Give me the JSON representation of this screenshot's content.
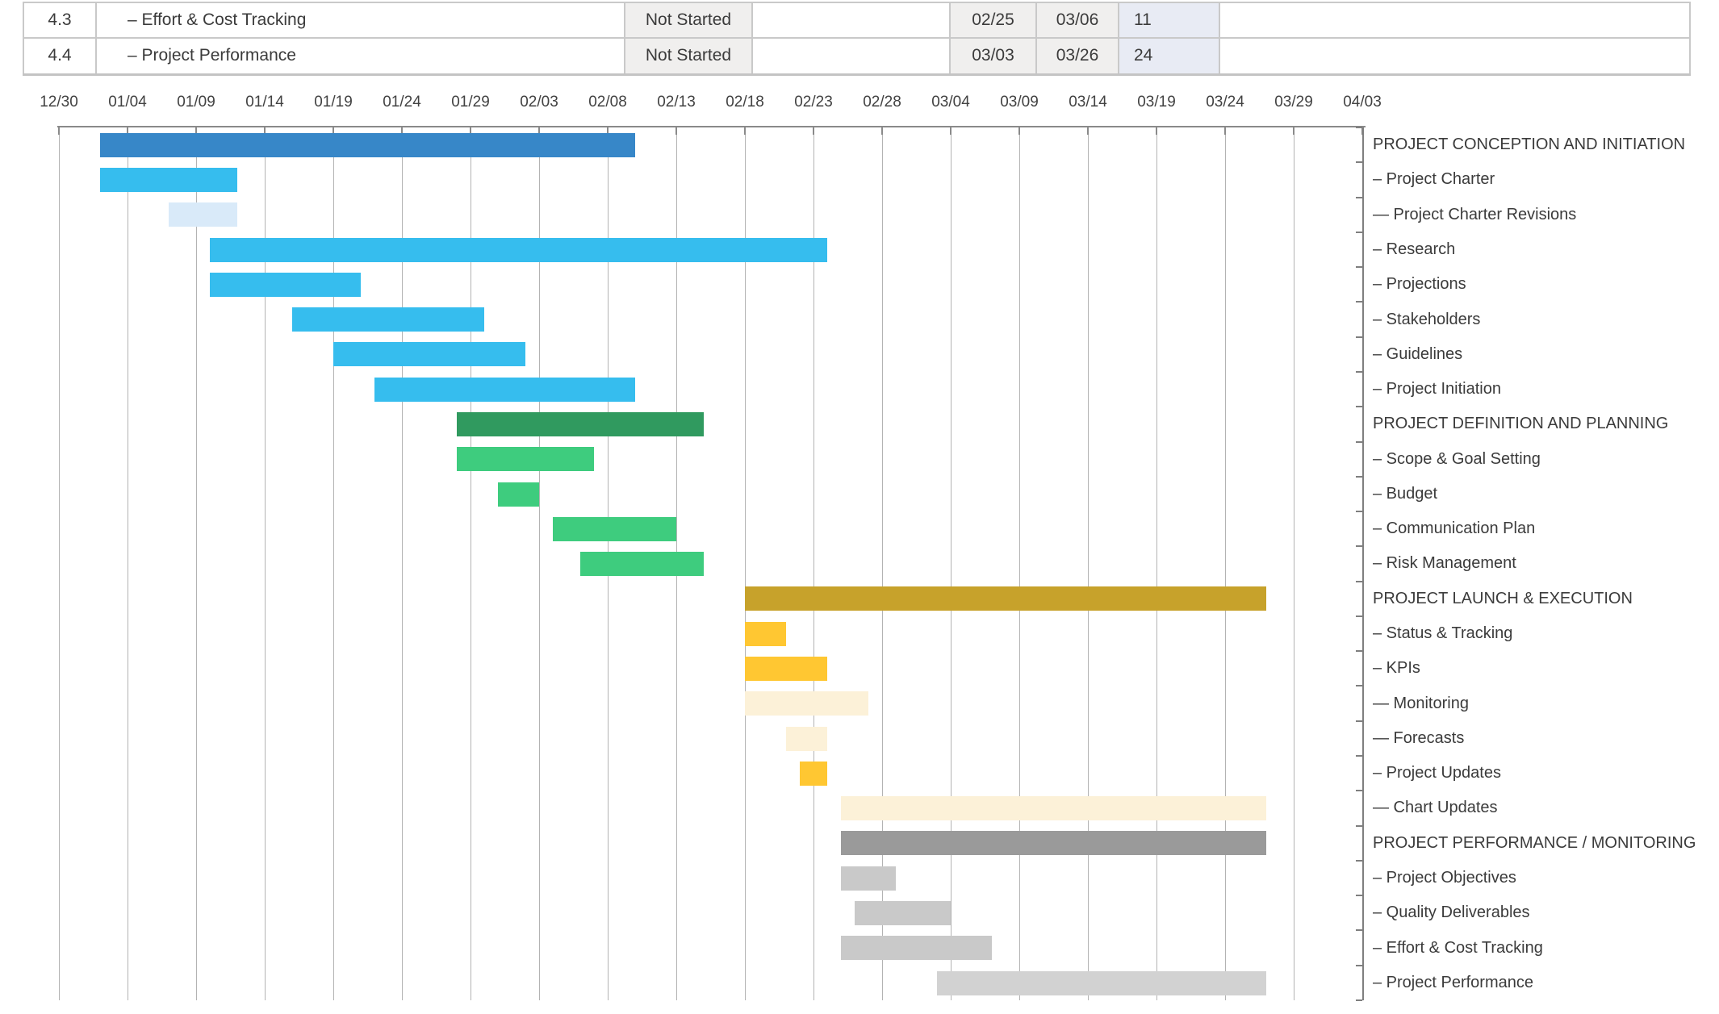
{
  "table": {
    "rows": [
      {
        "wbs": "4.3",
        "task": "– Effort & Cost Tracking",
        "status": "Not Started",
        "assigned": "",
        "start": "02/25",
        "end": "03/06",
        "duration": "11",
        "notes": ""
      },
      {
        "wbs": "4.4",
        "task": "– Project Performance",
        "status": "Not Started",
        "assigned": "",
        "start": "03/03",
        "end": "03/26",
        "duration": "24",
        "notes": ""
      }
    ]
  },
  "chart_data": {
    "type": "gantt",
    "title": "",
    "axis": {
      "tick_labels": [
        "12/30",
        "01/04",
        "01/09",
        "01/14",
        "01/19",
        "01/24",
        "01/29",
        "02/03",
        "02/08",
        "02/13",
        "02/18",
        "02/23",
        "02/28",
        "03/04",
        "03/09",
        "03/14",
        "03/19",
        "03/24",
        "03/29",
        "04/03"
      ],
      "range_start": "12/30",
      "range_end": "04/03",
      "grid": "on",
      "labels_position": "right"
    },
    "rows": [
      {
        "label": "PROJECT CONCEPTION AND INITIATION",
        "level": "section",
        "start": "01/02",
        "end": "02/09",
        "color": "#3787c8",
        "color_name": "dark-blue"
      },
      {
        "label": "– Project Charter",
        "level": "task",
        "start": "01/02",
        "end": "01/11",
        "color": "#36bdee",
        "color_name": "sky-blue"
      },
      {
        "label": "— Project Charter Revisions",
        "level": "subtask",
        "start": "01/07",
        "end": "01/11",
        "color": "#d9eaf9",
        "color_name": "pale-blue"
      },
      {
        "label": "– Research",
        "level": "task",
        "start": "01/10",
        "end": "02/23",
        "color": "#36bdee",
        "color_name": "sky-blue"
      },
      {
        "label": "– Projections",
        "level": "task",
        "start": "01/10",
        "end": "01/20",
        "color": "#36bdee",
        "color_name": "sky-blue"
      },
      {
        "label": "– Stakeholders",
        "level": "task",
        "start": "01/16",
        "end": "01/29",
        "color": "#36bdee",
        "color_name": "sky-blue"
      },
      {
        "label": "– Guidelines",
        "level": "task",
        "start": "01/19",
        "end": "02/01",
        "color": "#36bdee",
        "color_name": "sky-blue"
      },
      {
        "label": "– Project Initiation",
        "level": "task",
        "start": "01/22",
        "end": "02/09",
        "color": "#36bdee",
        "color_name": "sky-blue"
      },
      {
        "label": "PROJECT DEFINITION AND PLANNING",
        "level": "section",
        "start": "01/28",
        "end": "02/14",
        "color": "#309a5f",
        "color_name": "dark-green"
      },
      {
        "label": "– Scope & Goal Setting",
        "level": "task",
        "start": "01/28",
        "end": "02/06",
        "color": "#3ecc7e",
        "color_name": "green"
      },
      {
        "label": "– Budget",
        "level": "task",
        "start": "01/31",
        "end": "02/02",
        "color": "#3ecc7e",
        "color_name": "green"
      },
      {
        "label": "– Communication Plan",
        "level": "task",
        "start": "02/04",
        "end": "02/12",
        "color": "#3ecc7e",
        "color_name": "green"
      },
      {
        "label": "– Risk Management",
        "level": "task",
        "start": "02/06",
        "end": "02/14",
        "color": "#3ecc7e",
        "color_name": "green"
      },
      {
        "label": "PROJECT LAUNCH & EXECUTION",
        "level": "section",
        "start": "02/18",
        "end": "03/26",
        "color": "#c7a22b",
        "color_name": "gold"
      },
      {
        "label": "– Status & Tracking",
        "level": "task",
        "start": "02/18",
        "end": "02/20",
        "color": "#ffc732",
        "color_name": "yellow"
      },
      {
        "label": "– KPIs",
        "level": "task",
        "start": "02/18",
        "end": "02/23",
        "color": "#ffc732",
        "color_name": "yellow"
      },
      {
        "label": "— Monitoring",
        "level": "subtask",
        "start": "02/18",
        "end": "02/26",
        "color": "#fcf1d8",
        "color_name": "cream"
      },
      {
        "label": "— Forecasts",
        "level": "subtask",
        "start": "02/21",
        "end": "02/23",
        "color": "#fcf1d8",
        "color_name": "cream"
      },
      {
        "label": "– Project Updates",
        "level": "task",
        "start": "02/22",
        "end": "02/23",
        "color": "#ffc732",
        "color_name": "yellow"
      },
      {
        "label": "— Chart Updates",
        "level": "subtask",
        "start": "02/25",
        "end": "03/26",
        "color": "#fcf1d8",
        "color_name": "cream"
      },
      {
        "label": "PROJECT PERFORMANCE / MONITORING",
        "level": "section",
        "start": "02/25",
        "end": "03/26",
        "color": "#9a9a9a",
        "color_name": "dark-gray"
      },
      {
        "label": "– Project Objectives",
        "level": "task",
        "start": "02/25",
        "end": "02/28",
        "color": "#c9c9c9",
        "color_name": "gray"
      },
      {
        "label": "– Quality Deliverables",
        "level": "task",
        "start": "02/26",
        "end": "03/03",
        "color": "#c9c9c9",
        "color_name": "gray"
      },
      {
        "label": "– Effort & Cost Tracking",
        "level": "task",
        "start": "02/25",
        "end": "03/06",
        "color": "#c9c9c9",
        "color_name": "gray"
      },
      {
        "label": "– Project Performance",
        "level": "task",
        "start": "03/03",
        "end": "03/26",
        "color": "#d2d2d2",
        "color_name": "light-gray"
      }
    ]
  },
  "colors": {
    "grid": "#b3b3b3",
    "axis": "#8a8a8a",
    "text": "#3b3b3b",
    "table_border": "#c9c9c9",
    "status_cell_bg": "#f0efee",
    "duration_cell_bg": "#e8ebf4"
  }
}
